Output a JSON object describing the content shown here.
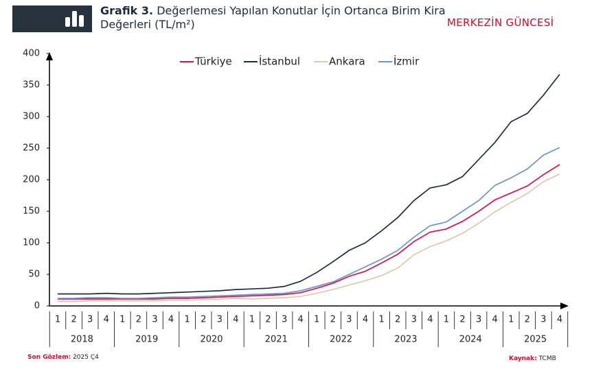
{
  "chart_data": {
    "type": "line",
    "title_label": "Grafik 3.",
    "title": "Değerlemesi Yapılan Konutlar İçin Ortanca Birim Kira Değerleri (TL/m²)",
    "brand": "MERKEZİN GÜNCESİ",
    "note_label": "Son Gözlem:",
    "note": "2025 Ç4",
    "source_label": "Kaynak:",
    "source": "TCMB",
    "categories": [
      "1",
      "2",
      "3",
      "4",
      "1",
      "2",
      "3",
      "4",
      "1",
      "2",
      "3",
      "4",
      "1",
      "2",
      "3",
      "4",
      "1",
      "2",
      "3",
      "4",
      "1",
      "2",
      "3",
      "4",
      "1",
      "2",
      "3",
      "4",
      "1",
      "2",
      "3",
      "4"
    ],
    "years": [
      "2018",
      "2019",
      "2020",
      "2021",
      "2022",
      "2023",
      "2024",
      "2025"
    ],
    "ylim": [
      0,
      400
    ],
    "yticks": [
      0,
      50,
      100,
      150,
      200,
      250,
      300,
      350,
      400
    ],
    "series": [
      {
        "name": "Türkiye",
        "color": "#d6154b",
        "values": [
          11,
          11,
          11,
          11,
          11,
          11,
          11,
          12,
          12,
          13,
          14,
          15,
          16,
          17,
          18,
          21,
          28,
          36,
          47,
          55,
          68,
          82,
          102,
          117,
          122,
          134,
          150,
          168,
          179,
          190,
          208,
          224
        ]
      },
      {
        "name": "İstanbul",
        "color": "#1f2b3d",
        "values": [
          19,
          19,
          19,
          20,
          19,
          19,
          20,
          21,
          22,
          23,
          24,
          26,
          27,
          28,
          31,
          39,
          53,
          70,
          88,
          100,
          119,
          140,
          167,
          187,
          192,
          205,
          232,
          259,
          292,
          305,
          334,
          367
        ]
      },
      {
        "name": "Ankara",
        "color": "#e0c9a9",
        "values": [
          7,
          7,
          8,
          8,
          8,
          8,
          8,
          9,
          9,
          10,
          11,
          12,
          11,
          12,
          13,
          15,
          20,
          26,
          33,
          40,
          48,
          60,
          81,
          94,
          103,
          115,
          131,
          149,
          164,
          178,
          197,
          209
        ]
      },
      {
        "name": "İzmir",
        "color": "#6b95c8",
        "values": [
          12,
          12,
          13,
          13,
          12,
          12,
          13,
          14,
          14,
          15,
          16,
          17,
          18,
          19,
          20,
          24,
          31,
          38,
          50,
          62,
          74,
          88,
          109,
          127,
          133,
          150,
          167,
          191,
          203,
          217,
          239,
          251
        ]
      }
    ]
  }
}
